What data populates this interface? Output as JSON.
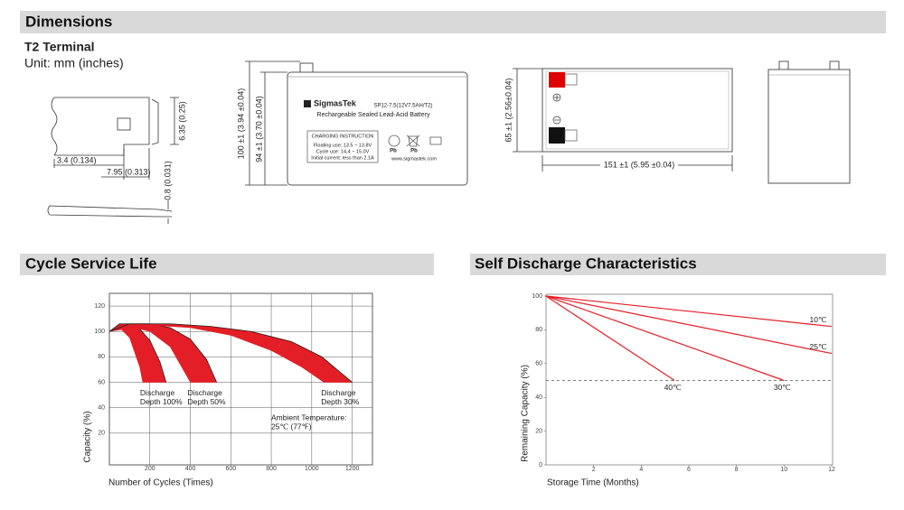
{
  "sections": {
    "dimensions": "Dimensions"
  },
  "dimensions": {
    "terminal_title": "T2 Terminal",
    "unit": "Unit: mm (inches)",
    "terminal_labels": [
      "6.35 (0.25)",
      "3.4 (0.134)",
      "7.95 (0.313)",
      "0.8 (0.031)"
    ],
    "front": {
      "height_total": "100 ±1 (3.94 ±0.04)",
      "height_body": "94 ±1 (3.70 ±0.04)",
      "brand": "SigmasTek",
      "model": "SP12-7.5(12V7.5AH/T2)",
      "description": "Rechargeable Sealed Lead-Acid Battery",
      "charging_title": "CHARGING INSTRUCTION",
      "charging_lines": [
        "Floating use: 13.5 ~ 13.8V",
        "Cycle use: 14.4 ~ 15.0V",
        "Initial current: less than 2.1A"
      ],
      "recycle_labels": [
        "Pb",
        "Pb"
      ],
      "website": "www.sigmastek.com"
    },
    "top": {
      "width": "65 ±1 (2.56±0.04)",
      "length": "151 ±1 (5.95 ±0.04)"
    }
  },
  "chart_data": [
    {
      "type": "area",
      "title": "Cycle Service Life",
      "x_label": "Number of Cycles (Times)",
      "y_label": "Capacity (%)",
      "xlim": [
        0,
        1300
      ],
      "ylim": [
        0,
        130
      ],
      "xticks": [
        200,
        400,
        600,
        800,
        1000,
        1200
      ],
      "yticks": [
        20,
        40,
        60,
        80,
        100,
        120
      ],
      "grid": true,
      "series": [
        {
          "label": [
            "Discharge",
            "Depth 100%"
          ],
          "color": "#e41e26",
          "x": [
            0,
            50,
            100,
            150,
            200,
            250,
            280
          ],
          "values": [
            100,
            106,
            106,
            102,
            93,
            76,
            60
          ],
          "lower_x": [
            0,
            50,
            100,
            150,
            165
          ],
          "lower_values": [
            100,
            103,
            95,
            72,
            60
          ]
        },
        {
          "label": [
            "Discharge",
            "Depth 50%"
          ],
          "color": "#e41e26",
          "x": [
            0,
            100,
            200,
            300,
            400,
            480,
            530
          ],
          "values": [
            100,
            106,
            106,
            103,
            94,
            78,
            60
          ],
          "lower_x": [
            0,
            100,
            200,
            300,
            400
          ],
          "lower_values": [
            100,
            104,
            100,
            88,
            60
          ]
        },
        {
          "label": [
            "Discharge",
            "Depth 30%"
          ],
          "color": "#e41e26",
          "x": [
            0,
            100,
            300,
            500,
            700,
            900,
            1050,
            1200
          ],
          "values": [
            100,
            106,
            106,
            104,
            100,
            92,
            80,
            60
          ],
          "lower_x": [
            0,
            200,
            400,
            600,
            800,
            950,
            1060
          ],
          "lower_values": [
            100,
            105,
            103,
            97,
            85,
            72,
            60
          ]
        }
      ],
      "annotation": [
        "Ambient Temperature:",
        "25℃ (77℉)"
      ]
    },
    {
      "type": "line",
      "title": "Self Discharge Characteristics",
      "x_label": "Storage Time (Months)",
      "y_label": "Remaining Capacity (%)",
      "xlim": [
        0,
        12
      ],
      "ylim": [
        0,
        100
      ],
      "xticks": [
        2,
        4,
        6,
        8,
        10,
        12
      ],
      "yticks": [
        0,
        20,
        40,
        60,
        80,
        100
      ],
      "grid": false,
      "reference_line": 50,
      "series": [
        {
          "name": "10℃",
          "color": "#e41e26",
          "x": [
            0,
            12
          ],
          "values": [
            100,
            82
          ]
        },
        {
          "name": "25℃",
          "color": "#e41e26",
          "x": [
            0,
            12
          ],
          "values": [
            100,
            66
          ]
        },
        {
          "name": "30℃",
          "color": "#e41e26",
          "x": [
            0,
            10
          ],
          "values": [
            100,
            50
          ]
        },
        {
          "name": "40℃",
          "color": "#e41e26",
          "x": [
            0,
            5.4
          ],
          "values": [
            100,
            50
          ]
        }
      ]
    }
  ]
}
